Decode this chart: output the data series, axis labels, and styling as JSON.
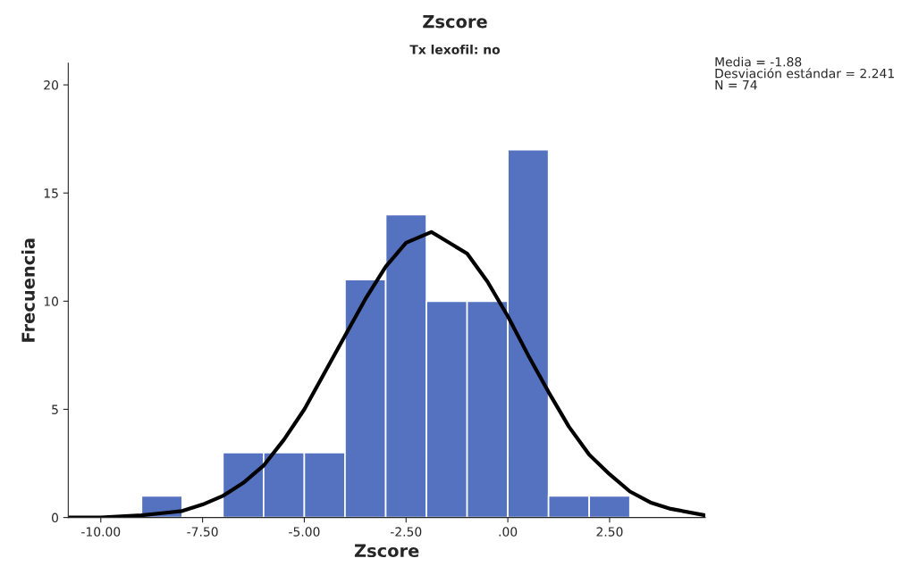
{
  "chart_data": {
    "type": "histogram",
    "title": "Zscore",
    "subtitle": "Tx lexofil: no",
    "xlabel": "Zscore",
    "ylabel": "Frecuencia",
    "bins": [
      -9,
      -8,
      -7,
      -6,
      -5,
      -4,
      -3,
      -2,
      -1,
      0,
      1,
      2,
      3
    ],
    "values": [
      1,
      0,
      3,
      3,
      3,
      11,
      14,
      10,
      10,
      17,
      1,
      1
    ],
    "color": "#5572c0",
    "series": [
      {
        "type": "line",
        "color": "#000000",
        "x": [
          -10.8,
          -10,
          -9,
          -8.5,
          -8,
          -7.5,
          -7,
          -6.5,
          -6,
          -5.5,
          -5,
          -4.5,
          -4,
          -3.5,
          -3,
          -2.5,
          -1.88,
          -1,
          -0.5,
          0,
          0.5,
          1,
          1.5,
          2,
          2.5,
          3,
          3.5,
          4,
          4.85
        ],
        "values": [
          0.0,
          0.0,
          0.1,
          0.2,
          0.3,
          0.6,
          1.0,
          1.6,
          2.4,
          3.6,
          5.0,
          6.7,
          8.4,
          10.1,
          11.6,
          12.7,
          13.2,
          12.2,
          10.9,
          9.3,
          7.5,
          5.8,
          4.2,
          2.9,
          2.0,
          1.2,
          0.7,
          0.4,
          0.1
        ]
      }
    ],
    "xlim": [
      -10.8,
      4.85
    ],
    "ylim": [
      0,
      21
    ],
    "xticks": [
      {
        "value": -10,
        "label": "-10.00"
      },
      {
        "value": -7.5,
        "label": "-7.50"
      },
      {
        "value": -5,
        "label": "-5.00"
      },
      {
        "value": -2.5,
        "label": "-2.50"
      },
      {
        "value": 0,
        "label": ".00"
      },
      {
        "value": 2.5,
        "label": "2.50"
      }
    ],
    "yticks": [
      0,
      5,
      10,
      15,
      20
    ],
    "grid": false,
    "legend": false,
    "annotations": [
      "Media = -1.88",
      "Desviación estándar = 2.241",
      "N = 74"
    ]
  }
}
